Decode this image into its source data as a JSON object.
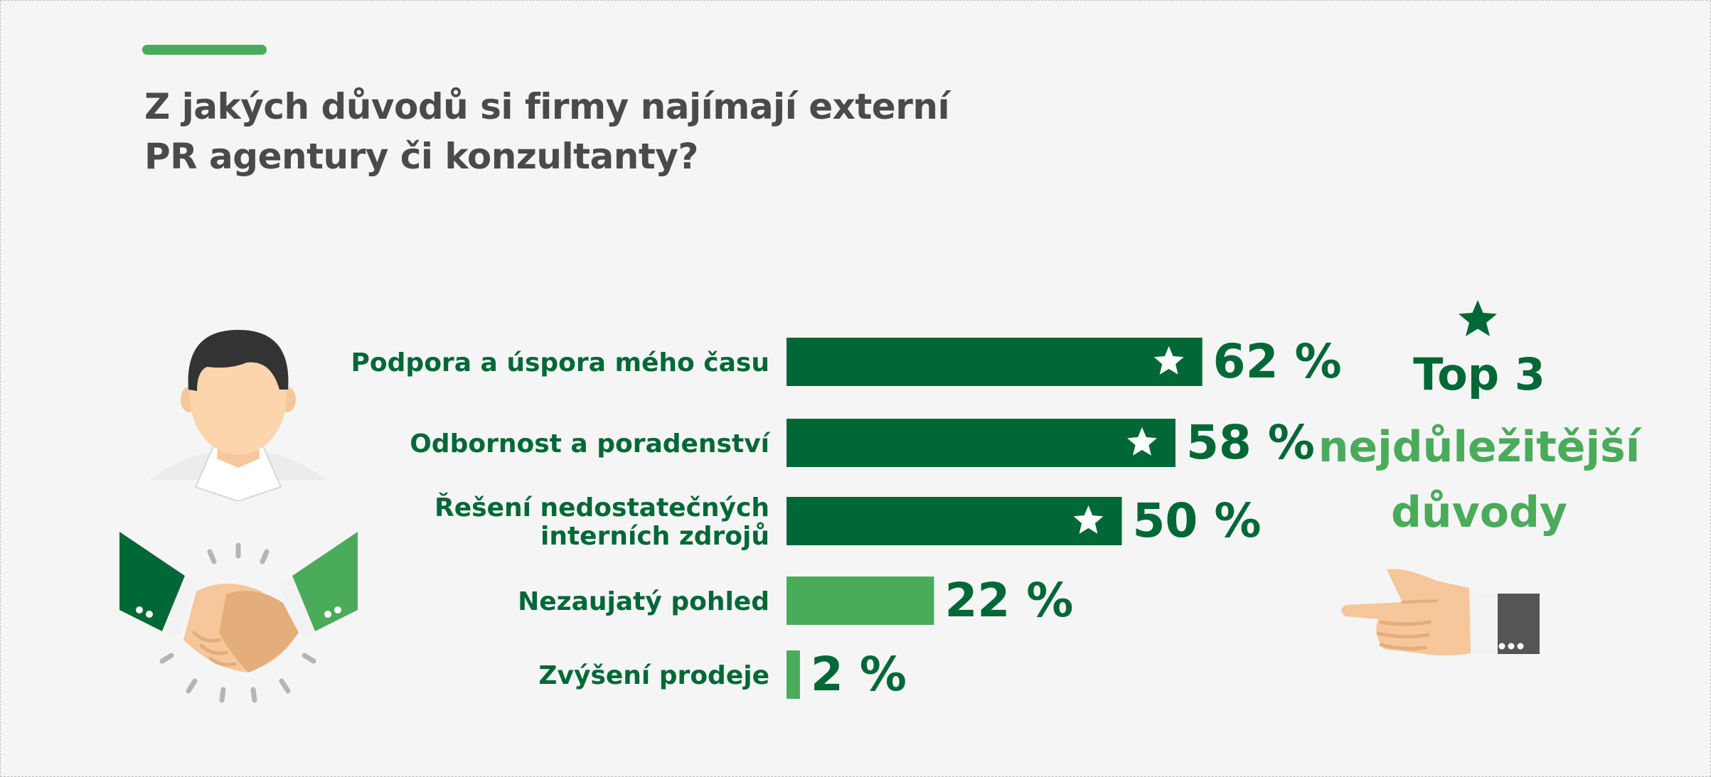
{
  "title_lines": [
    "Z jakých důvodů si firmy najímají externí",
    "PR agentury či konzultanty?"
  ],
  "callout": {
    "top": "Top 3",
    "line2": "nejdůležitější",
    "line3": "důvody"
  },
  "colors": {
    "dark_green": "#006837",
    "light_green": "#4aab5b",
    "title_gray": "#4a4a4a",
    "background": "#f5f5f5"
  },
  "icons": [
    "person-avatar-icon",
    "handshake-icon",
    "pointing-hand-icon",
    "star-icon"
  ],
  "chart_data": {
    "type": "bar",
    "orientation": "horizontal",
    "categories": [
      [
        "Podpora a úspora mého času"
      ],
      [
        "Odbornost a poradenství"
      ],
      [
        "Řešení nedostatečných",
        "interních zdrojů"
      ],
      [
        "Nezaujatý pohled"
      ],
      [
        "Zvýšení prodeje"
      ]
    ],
    "values": [
      62,
      58,
      50,
      22,
      2
    ],
    "value_labels": [
      "62 %",
      "58 %",
      "50 %",
      "22 %",
      "2 %"
    ],
    "top3_starred": [
      true,
      true,
      true,
      false,
      false
    ],
    "bar_colors": [
      "#006837",
      "#006837",
      "#006837",
      "#4aab5b",
      "#4aab5b"
    ],
    "xlim": [
      0,
      100
    ],
    "unit": "%"
  }
}
